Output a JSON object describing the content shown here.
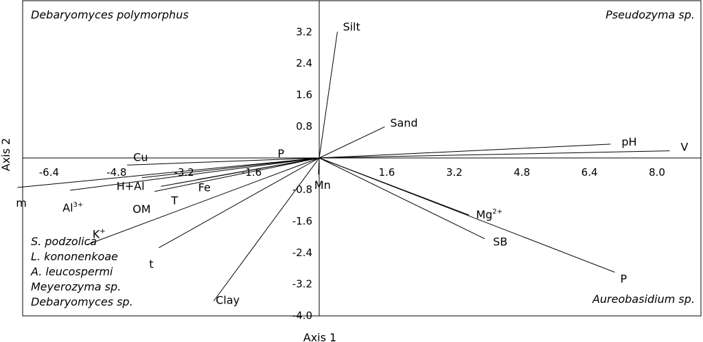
{
  "chart_data": {
    "type": "biplot",
    "xlabel": "Axis 1",
    "ylabel": "Axis 2",
    "xlim": [
      -7.2,
      8.8
    ],
    "ylim": [
      -4.05,
      3.95
    ],
    "x_ticks": [
      -6.4,
      -4.8,
      -3.2,
      -1.6,
      1.6,
      3.2,
      4.8,
      6.4,
      8.0
    ],
    "y_ticks": [
      3.2,
      2.4,
      1.6,
      0.8,
      -0.8,
      -1.6,
      -2.4,
      -3.2,
      -4.0
    ],
    "tick_labels": {
      "x": [
        "-6.4",
        "-4.8",
        "-3.2",
        "-1.6",
        "1.6",
        "3.2",
        "4.8",
        "6.4",
        "8.0"
      ],
      "y": [
        "3.2",
        "2.4",
        "1.6",
        "0.8",
        "-0.8",
        "-1.6",
        "-2.4",
        "-3.2",
        "-4.0"
      ]
    },
    "vectors": [
      {
        "name": "Silt",
        "x": 0.43,
        "y": 3.2
      },
      {
        "name": "Sand",
        "x": 1.55,
        "y": 0.79
      },
      {
        "name": "pH",
        "x": 6.9,
        "y": 0.35
      },
      {
        "name": "V",
        "x": 8.3,
        "y": 0.18
      },
      {
        "name": "Mg",
        "superscript": "2+",
        "x": 3.55,
        "y": -1.45
      },
      {
        "name": "SB",
        "x": 3.92,
        "y": -2.05
      },
      {
        "name": "P",
        "x": 7.0,
        "y": -2.9
      },
      {
        "name": "Mn",
        "x": -0.02,
        "y": -0.42
      },
      {
        "name": "Cu",
        "x": -4.55,
        "y": -0.18
      },
      {
        "name": "H+Al",
        "x": -4.2,
        "y": -0.5
      },
      {
        "name": "Fe",
        "x": -2.9,
        "y": -0.55
      },
      {
        "name": "T",
        "x": -3.75,
        "y": -0.72
      },
      {
        "name": "OM",
        "x": -3.9,
        "y": -0.85
      },
      {
        "name": "Al",
        "superscript": "3+",
        "x": -5.9,
        "y": -0.82
      },
      {
        "name": "m",
        "x": -7.15,
        "y": -0.75
      },
      {
        "name": "K",
        "superscript": "+",
        "x": -5.5,
        "y": -2.2
      },
      {
        "name": "t",
        "x": -3.8,
        "y": -2.28
      },
      {
        "name": "Clay",
        "x": -2.5,
        "y": -3.63
      },
      {
        "name": "P",
        "x": -0.4,
        "y": -0.02
      }
    ],
    "species_labels": [
      "Debaryomyces polymorphus",
      "Pseudozyma sp.",
      "S. podzolica",
      "L. kononenkoae",
      "A. leucospermi",
      "Meyerozyma sp.",
      "Debaryomyces sp.",
      "Aureobasidium sp."
    ]
  }
}
